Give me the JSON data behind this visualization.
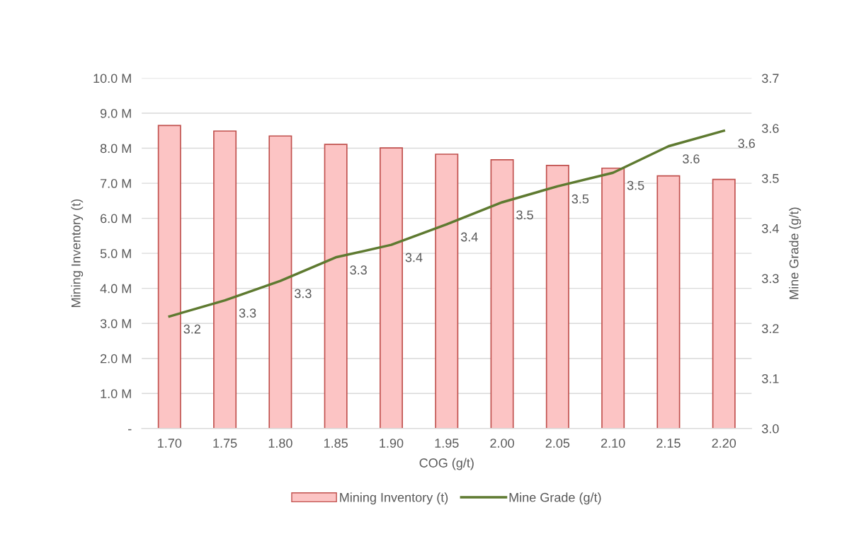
{
  "chart_data": {
    "type": "bar",
    "xlabel": "COG (g/t)",
    "ylabel": "Mining Inventory (t)",
    "y2label": "Mine Grade (g/t)",
    "categories": [
      "1.70",
      "1.75",
      "1.80",
      "1.85",
      "1.90",
      "1.95",
      "2.00",
      "2.05",
      "2.10",
      "2.15",
      "2.20"
    ],
    "series": [
      {
        "name": "Mining Inventory (t)",
        "color": "#fcc4c4",
        "values": [
          8650000,
          8490000,
          8350000,
          8110000,
          8010000,
          7830000,
          7670000,
          7510000,
          7430000,
          7210000,
          7110000
        ]
      },
      {
        "name": "Mine Grade (g/t)",
        "type": "line",
        "axis": "y2",
        "color": "#5e7a30",
        "values": [
          3.224,
          3.256,
          3.295,
          3.342,
          3.367,
          3.408,
          3.452,
          3.484,
          3.511,
          3.564,
          3.595
        ],
        "value_labels": [
          "3.2",
          "3.3",
          "3.3",
          "3.3",
          "3.4",
          "3.4",
          "3.5",
          "3.5",
          "3.5",
          "3.6",
          "3.6"
        ]
      }
    ],
    "ylim": [
      0,
      10000000
    ],
    "yticks": [
      {
        "value": 0,
        "label": "-"
      },
      {
        "value": 1000000,
        "label": "1.0 M"
      },
      {
        "value": 2000000,
        "label": "2.0 M"
      },
      {
        "value": 3000000,
        "label": "3.0 M"
      },
      {
        "value": 4000000,
        "label": "4.0 M"
      },
      {
        "value": 5000000,
        "label": "5.0 M"
      },
      {
        "value": 6000000,
        "label": "6.0 M"
      },
      {
        "value": 7000000,
        "label": "7.0 M"
      },
      {
        "value": 8000000,
        "label": "8.0 M"
      },
      {
        "value": 9000000,
        "label": "9.0 M"
      },
      {
        "value": 10000000,
        "label": "10.0 M"
      }
    ],
    "y2lim": [
      3.0,
      3.7
    ],
    "y2ticks": [
      {
        "value": 3.0,
        "label": "3.0"
      },
      {
        "value": 3.1,
        "label": "3.1"
      },
      {
        "value": 3.2,
        "label": "3.2"
      },
      {
        "value": 3.3,
        "label": "3.3"
      },
      {
        "value": 3.4,
        "label": "3.4"
      },
      {
        "value": 3.5,
        "label": "3.5"
      },
      {
        "value": 3.6,
        "label": "3.6"
      },
      {
        "value": 3.7,
        "label": "3.7"
      }
    ],
    "grid": "y",
    "legend": "bottom",
    "marker": "none",
    "line_style": "solid"
  }
}
